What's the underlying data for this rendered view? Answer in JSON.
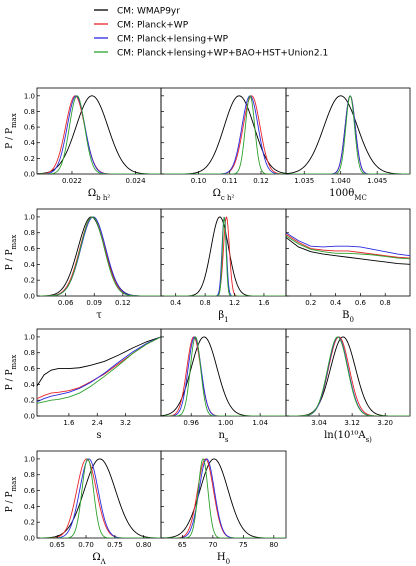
{
  "legend": [
    {
      "name": "CM: WMAP9yr",
      "color": "#000000"
    },
    {
      "name": "CM: Planck+WP",
      "color": "#e8242a"
    },
    {
      "name": "CM: Planck+lensing+WP",
      "color": "#2a2ae0"
    },
    {
      "name": "CM: Planck+lensing+WP+BAO+HST+Union2.1",
      "color": "#2ca02c"
    }
  ],
  "ylabel": "P / P_max",
  "yticks": [
    "0.0",
    "0.2",
    "0.4",
    "0.6",
    "0.8",
    "1.0"
  ],
  "chart_data": [
    {
      "type": "line",
      "xlabel": "Ω_b h²",
      "xlim": [
        0.0209,
        0.0248
      ],
      "xticks": [
        "0.022",
        "0.024"
      ],
      "series": [
        {
          "name": "CM: WMAP9yr",
          "curve": "gauss",
          "mu": 0.02263,
          "sigma": 0.0005
        },
        {
          "name": "CM: Planck+WP",
          "curve": "gauss",
          "mu": 0.0221,
          "sigma": 0.0003
        },
        {
          "name": "CM: Planck+lensing+WP",
          "curve": "gauss",
          "mu": 0.02213,
          "sigma": 0.00028
        },
        {
          "name": "CM: Planck+lensing+WP+BAO+HST+Union2.1",
          "curve": "gauss",
          "mu": 0.02216,
          "sigma": 0.00024
        }
      ]
    },
    {
      "type": "line",
      "xlabel": "Ω_c h²",
      "xlim": [
        0.088,
        0.128
      ],
      "xticks": [
        "0.10",
        "0.11",
        "0.12"
      ],
      "series": [
        {
          "name": "CM: WMAP9yr",
          "curve": "gauss",
          "mu": 0.113,
          "sigma": 0.0048
        },
        {
          "name": "CM: Planck+WP",
          "curve": "gauss",
          "mu": 0.117,
          "sigma": 0.0027
        },
        {
          "name": "CM: Planck+lensing+WP",
          "curve": "gauss",
          "mu": 0.1165,
          "sigma": 0.0026
        },
        {
          "name": "CM: Planck+lensing+WP+BAO+HST+Union2.1",
          "curve": "gauss",
          "mu": 0.1165,
          "sigma": 0.0015
        }
      ]
    },
    {
      "type": "line",
      "xlabel": "100θ_MC",
      "xlim": [
        1.0325,
        1.0495
      ],
      "xticks": [
        "1.035",
        "1.040",
        "1.045"
      ],
      "series": [
        {
          "name": "CM: WMAP9yr",
          "curve": "gauss",
          "mu": 1.04,
          "sigma": 0.0023
        },
        {
          "name": "CM: Planck+WP",
          "curve": "gauss",
          "mu": 1.0413,
          "sigma": 0.0007
        },
        {
          "name": "CM: Planck+lensing+WP",
          "curve": "gauss",
          "mu": 1.0413,
          "sigma": 0.0007
        },
        {
          "name": "CM: Planck+lensing+WP+BAO+HST+Union2.1",
          "curve": "gauss",
          "mu": 1.0413,
          "sigma": 0.0006
        }
      ]
    },
    {
      "type": "line",
      "xlabel": "τ",
      "xlim": [
        0.03,
        0.16
      ],
      "xticks": [
        "0.06",
        "0.09",
        "0.12"
      ],
      "series": [
        {
          "name": "CM: WMAP9yr",
          "curve": "gauss",
          "mu": 0.087,
          "sigma": 0.014
        },
        {
          "name": "CM: Planck+WP",
          "curve": "gauss",
          "mu": 0.088,
          "sigma": 0.013
        },
        {
          "name": "CM: Planck+lensing+WP",
          "curve": "gauss",
          "mu": 0.089,
          "sigma": 0.013
        },
        {
          "name": "CM: Planck+lensing+WP+BAO+HST+Union2.1",
          "curve": "gauss",
          "mu": 0.088,
          "sigma": 0.0125
        }
      ]
    },
    {
      "type": "line",
      "xlabel": "β_1",
      "xlim": [
        0.2,
        1.9
      ],
      "xticks": [
        "0.4",
        "0.8",
        "1.2",
        "1.6"
      ],
      "series": [
        {
          "name": "CM: WMAP9yr",
          "curve": "gauss",
          "mu": 1.0,
          "sigma": 0.12
        },
        {
          "name": "CM: Planck+WP",
          "curve": "gauss",
          "mu": 1.09,
          "sigma": 0.04
        },
        {
          "name": "CM: Planck+lensing+WP",
          "curve": "gauss",
          "mu": 1.06,
          "sigma": 0.03
        },
        {
          "name": "CM: Planck+lensing+WP+BAO+HST+Union2.1",
          "curve": "gauss",
          "mu": 1.06,
          "sigma": 0.025
        }
      ]
    },
    {
      "type": "line",
      "xlabel": "B_0",
      "xlim": [
        0.0,
        1.0
      ],
      "xticks": [
        "0.2",
        "0.4",
        "0.6",
        "0.8"
      ],
      "series": [
        {
          "name": "CM: WMAP9yr",
          "curve": "points",
          "x": [
            0.0,
            0.1,
            0.2,
            0.3,
            0.4,
            0.5,
            0.6,
            0.7,
            0.8,
            0.9,
            1.0
          ],
          "y": [
            0.74,
            0.62,
            0.56,
            0.53,
            0.51,
            0.49,
            0.47,
            0.45,
            0.43,
            0.41,
            0.4
          ]
        },
        {
          "name": "CM: Planck+WP",
          "curve": "points",
          "x": [
            0.0,
            0.1,
            0.2,
            0.3,
            0.4,
            0.5,
            0.6,
            0.7,
            0.8,
            0.9,
            1.0
          ],
          "y": [
            0.78,
            0.68,
            0.6,
            0.58,
            0.57,
            0.57,
            0.55,
            0.53,
            0.51,
            0.49,
            0.48
          ]
        },
        {
          "name": "CM: Planck+lensing+WP",
          "curve": "points",
          "x": [
            0.0,
            0.1,
            0.2,
            0.3,
            0.4,
            0.5,
            0.6,
            0.7,
            0.8,
            0.9,
            1.0
          ],
          "y": [
            0.8,
            0.7,
            0.63,
            0.62,
            0.63,
            0.63,
            0.62,
            0.59,
            0.56,
            0.53,
            0.51
          ]
        },
        {
          "name": "CM: Planck+lensing+WP+BAO+HST+Union2.1",
          "curve": "points",
          "x": [
            0.0,
            0.1,
            0.2,
            0.3,
            0.4,
            0.5,
            0.6,
            0.7,
            0.8,
            0.9,
            1.0
          ],
          "y": [
            0.76,
            0.66,
            0.59,
            0.56,
            0.54,
            0.54,
            0.53,
            0.52,
            0.5,
            0.48,
            0.47
          ]
        }
      ]
    },
    {
      "type": "line",
      "xlabel": "s",
      "xlim": [
        0.7,
        4.2
      ],
      "xticks": [
        "1.6",
        "2.4",
        "3.2"
      ],
      "series": [
        {
          "name": "CM: WMAP9yr",
          "curve": "points",
          "x": [
            0.7,
            0.9,
            1.1,
            1.3,
            1.6,
            1.9,
            2.2,
            2.6,
            3.0,
            3.4,
            3.8,
            4.2
          ],
          "y": [
            0.38,
            0.52,
            0.58,
            0.6,
            0.6,
            0.61,
            0.64,
            0.69,
            0.77,
            0.86,
            0.94,
            1.0
          ]
        },
        {
          "name": "CM: Planck+WP",
          "curve": "points",
          "x": [
            0.7,
            0.9,
            1.1,
            1.3,
            1.6,
            1.9,
            2.2,
            2.6,
            3.0,
            3.4,
            3.8,
            4.2
          ],
          "y": [
            0.22,
            0.26,
            0.29,
            0.3,
            0.32,
            0.36,
            0.43,
            0.53,
            0.66,
            0.79,
            0.91,
            1.0
          ]
        },
        {
          "name": "CM: Planck+lensing+WP",
          "curve": "points",
          "x": [
            0.7,
            0.9,
            1.1,
            1.3,
            1.6,
            1.9,
            2.2,
            2.6,
            3.0,
            3.4,
            3.8,
            4.2
          ],
          "y": [
            0.18,
            0.22,
            0.25,
            0.27,
            0.3,
            0.35,
            0.42,
            0.54,
            0.68,
            0.81,
            0.92,
            1.0
          ]
        },
        {
          "name": "CM: Planck+lensing+WP+BAO+HST+Union2.1",
          "curve": "points",
          "x": [
            0.7,
            0.9,
            1.1,
            1.3,
            1.6,
            1.9,
            2.2,
            2.6,
            3.0,
            3.4,
            3.8,
            4.2
          ],
          "y": [
            0.16,
            0.18,
            0.2,
            0.21,
            0.24,
            0.29,
            0.37,
            0.5,
            0.64,
            0.79,
            0.91,
            1.0
          ]
        }
      ]
    },
    {
      "type": "line",
      "xlabel": "n_s",
      "xlim": [
        0.925,
        1.07
      ],
      "xticks": [
        "0.96",
        "1.00",
        "1.04"
      ],
      "series": [
        {
          "name": "CM: WMAP9yr",
          "curve": "gauss",
          "mu": 0.975,
          "sigma": 0.015
        },
        {
          "name": "CM: Planck+WP",
          "curve": "gauss",
          "mu": 0.963,
          "sigma": 0.008
        },
        {
          "name": "CM: Planck+lensing+WP",
          "curve": "gauss",
          "mu": 0.964,
          "sigma": 0.0075
        },
        {
          "name": "CM: Planck+lensing+WP+BAO+HST+Union2.1",
          "curve": "gauss",
          "mu": 0.965,
          "sigma": 0.006
        }
      ]
    },
    {
      "type": "line",
      "xlabel": "ln(10¹⁰A_s)",
      "xlim": [
        2.96,
        3.26
      ],
      "xticks": [
        "3.04",
        "3.12",
        "3.20"
      ],
      "series": [
        {
          "name": "CM: WMAP9yr",
          "curve": "gauss",
          "mu": 3.098,
          "sigma": 0.03
        },
        {
          "name": "CM: Planck+WP",
          "curve": "gauss",
          "mu": 3.088,
          "sigma": 0.025
        },
        {
          "name": "CM: Planck+lensing+WP",
          "curve": "gauss",
          "mu": 3.086,
          "sigma": 0.024
        },
        {
          "name": "CM: Planck+lensing+WP+BAO+HST+Union2.1",
          "curve": "gauss",
          "mu": 3.085,
          "sigma": 0.024
        }
      ]
    },
    {
      "type": "line",
      "xlabel": "Ω_Λ",
      "xlim": [
        0.615,
        0.83
      ],
      "xticks": [
        "0.65",
        "0.70",
        "0.75",
        "0.80"
      ],
      "series": [
        {
          "name": "CM: WMAP9yr",
          "curve": "gauss",
          "mu": 0.724,
          "sigma": 0.027
        },
        {
          "name": "CM: Planck+WP",
          "curve": "gauss",
          "mu": 0.701,
          "sigma": 0.017
        },
        {
          "name": "CM: Planck+lensing+WP",
          "curve": "gauss",
          "mu": 0.705,
          "sigma": 0.016
        },
        {
          "name": "CM: Planck+lensing+WP+BAO+HST+Union2.1",
          "curve": "gauss",
          "mu": 0.703,
          "sigma": 0.01
        }
      ]
    },
    {
      "type": "line",
      "xlabel": "H_0",
      "xlim": [
        61.5,
        82
      ],
      "xticks": [
        "65",
        "70",
        "75",
        "80"
      ],
      "series": [
        {
          "name": "CM: WMAP9yr",
          "curve": "gauss",
          "mu": 70.2,
          "sigma": 2.3
        },
        {
          "name": "CM: Planck+WP",
          "curve": "gauss",
          "mu": 68.8,
          "sigma": 1.3
        },
        {
          "name": "CM: Planck+lensing+WP",
          "curve": "gauss",
          "mu": 69.0,
          "sigma": 1.25
        },
        {
          "name": "CM: Planck+lensing+WP+BAO+HST+Union2.1",
          "curve": "gauss",
          "mu": 68.4,
          "sigma": 0.8
        }
      ]
    }
  ]
}
